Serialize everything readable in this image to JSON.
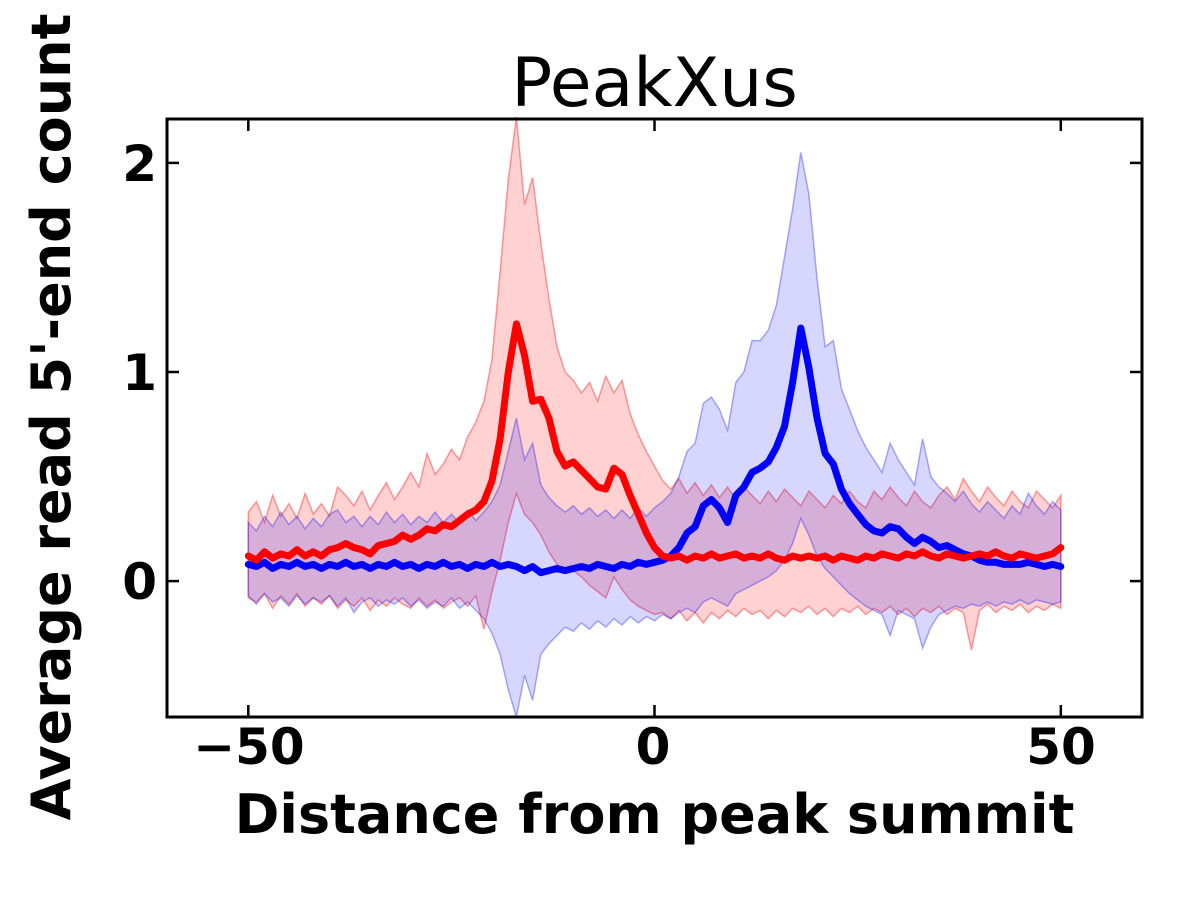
{
  "figure": {
    "background": "#ffffff",
    "spine_color": "#000000"
  },
  "chart_data": {
    "type": "line",
    "title": "PeakXus",
    "xlabel": "Distance from peak summit",
    "ylabel": "Average read 5'-end count",
    "xlim": [
      -60,
      60
    ],
    "ylim": [
      -0.65,
      2.21
    ],
    "grid": false,
    "legend": "none",
    "xticks": [
      -50,
      0,
      50
    ],
    "yticks": [
      0,
      1,
      2
    ],
    "xtick_labels": [
      "−50",
      "0",
      "50"
    ],
    "ytick_labels": [
      "0",
      "1",
      "2"
    ],
    "x": [
      -50,
      -49,
      -48,
      -47,
      -46,
      -45,
      -44,
      -43,
      -42,
      -41,
      -40,
      -39,
      -38,
      -37,
      -36,
      -35,
      -34,
      -33,
      -32,
      -31,
      -30,
      -29,
      -28,
      -27,
      -26,
      -25,
      -24,
      -23,
      -22,
      -21,
      -20,
      -19,
      -18,
      -17,
      -16,
      -15,
      -14,
      -13,
      -12,
      -11,
      -10,
      -9,
      -8,
      -7,
      -6,
      -5,
      -4,
      -3,
      -2,
      -1,
      0,
      1,
      2,
      3,
      4,
      5,
      6,
      7,
      8,
      9,
      10,
      11,
      12,
      13,
      14,
      15,
      16,
      17,
      18,
      19,
      20,
      21,
      22,
      23,
      24,
      25,
      26,
      27,
      28,
      29,
      30,
      31,
      32,
      33,
      34,
      35,
      36,
      37,
      38,
      39,
      40,
      41,
      42,
      43,
      44,
      45,
      46,
      47,
      48,
      49,
      50
    ],
    "series": [
      {
        "name": "red-series",
        "color": "#ff0000",
        "band_fill_alpha": 0.18,
        "band_edge_alpha": 0.38,
        "values": [
          0.12,
          0.1,
          0.14,
          0.11,
          0.13,
          0.12,
          0.15,
          0.12,
          0.14,
          0.12,
          0.15,
          0.16,
          0.18,
          0.16,
          0.15,
          0.13,
          0.17,
          0.18,
          0.19,
          0.22,
          0.2,
          0.22,
          0.25,
          0.24,
          0.27,
          0.26,
          0.29,
          0.32,
          0.34,
          0.38,
          0.48,
          0.68,
          1.0,
          1.23,
          1.08,
          0.86,
          0.87,
          0.78,
          0.62,
          0.55,
          0.57,
          0.53,
          0.49,
          0.45,
          0.44,
          0.54,
          0.51,
          0.41,
          0.32,
          0.23,
          0.16,
          0.12,
          0.11,
          0.12,
          0.1,
          0.12,
          0.11,
          0.13,
          0.11,
          0.12,
          0.13,
          0.11,
          0.12,
          0.11,
          0.13,
          0.11,
          0.1,
          0.12,
          0.11,
          0.12,
          0.11,
          0.12,
          0.1,
          0.12,
          0.11,
          0.1,
          0.12,
          0.11,
          0.13,
          0.12,
          0.11,
          0.13,
          0.12,
          0.14,
          0.12,
          0.11,
          0.13,
          0.12,
          0.11,
          0.12,
          0.13,
          0.12,
          0.14,
          0.12,
          0.11,
          0.13,
          0.12,
          0.11,
          0.12,
          0.13,
          0.16
        ],
        "band_upper": [
          0.33,
          0.38,
          0.28,
          0.41,
          0.31,
          0.37,
          0.3,
          0.42,
          0.32,
          0.37,
          0.31,
          0.45,
          0.41,
          0.36,
          0.43,
          0.34,
          0.41,
          0.47,
          0.39,
          0.45,
          0.52,
          0.45,
          0.61,
          0.51,
          0.56,
          0.63,
          0.58,
          0.69,
          0.76,
          0.86,
          1.06,
          1.48,
          1.92,
          2.22,
          1.8,
          1.93,
          1.62,
          1.35,
          1.12,
          1.0,
          0.96,
          0.9,
          0.95,
          0.86,
          0.98,
          0.9,
          0.96,
          0.8,
          0.7,
          0.62,
          0.55,
          0.48,
          0.44,
          0.49,
          0.42,
          0.47,
          0.41,
          0.46,
          0.4,
          0.45,
          0.39,
          0.45,
          0.41,
          0.37,
          0.43,
          0.38,
          0.44,
          0.4,
          0.36,
          0.43,
          0.39,
          0.35,
          0.41,
          0.37,
          0.43,
          0.38,
          0.35,
          0.43,
          0.39,
          0.45,
          0.4,
          0.36,
          0.43,
          0.38,
          0.35,
          0.41,
          0.45,
          0.39,
          0.49,
          0.43,
          0.38,
          0.45,
          0.4,
          0.36,
          0.43,
          0.38,
          0.35,
          0.43,
          0.39,
          0.35,
          0.41
        ],
        "band_lower": [
          -0.08,
          -0.1,
          -0.06,
          -0.13,
          -0.07,
          -0.11,
          -0.06,
          -0.12,
          -0.08,
          -0.11,
          -0.07,
          -0.13,
          -0.09,
          -0.12,
          -0.08,
          -0.14,
          -0.09,
          -0.12,
          -0.08,
          -0.11,
          -0.13,
          -0.08,
          -0.12,
          -0.09,
          -0.13,
          -0.1,
          -0.08,
          -0.12,
          -0.07,
          -0.23,
          -0.05,
          0.1,
          0.28,
          0.42,
          0.32,
          0.28,
          0.22,
          0.14,
          0.08,
          0.04,
          0.05,
          0.02,
          -0.02,
          -0.05,
          -0.08,
          0.02,
          -0.04,
          -0.09,
          -0.12,
          -0.14,
          -0.16,
          -0.15,
          -0.18,
          -0.14,
          -0.19,
          -0.15,
          -0.2,
          -0.15,
          -0.18,
          -0.14,
          -0.17,
          -0.13,
          -0.16,
          -0.14,
          -0.18,
          -0.14,
          -0.17,
          -0.13,
          -0.15,
          -0.12,
          -0.16,
          -0.13,
          -0.17,
          -0.13,
          -0.15,
          -0.12,
          -0.16,
          -0.13,
          -0.15,
          -0.12,
          -0.16,
          -0.13,
          -0.17,
          -0.13,
          -0.15,
          -0.12,
          -0.16,
          -0.13,
          -0.15,
          -0.33,
          -0.14,
          -0.11,
          -0.15,
          -0.12,
          -0.14,
          -0.11,
          -0.15,
          -0.12,
          -0.14,
          -0.11,
          -0.13
        ]
      },
      {
        "name": "blue-series",
        "color": "#0000ff",
        "band_fill_alpha": 0.16,
        "band_edge_alpha": 0.32,
        "values": [
          0.08,
          0.07,
          0.09,
          0.06,
          0.08,
          0.07,
          0.09,
          0.07,
          0.08,
          0.06,
          0.08,
          0.07,
          0.09,
          0.07,
          0.08,
          0.06,
          0.08,
          0.07,
          0.09,
          0.07,
          0.08,
          0.06,
          0.08,
          0.07,
          0.09,
          0.07,
          0.08,
          0.06,
          0.08,
          0.07,
          0.09,
          0.07,
          0.08,
          0.07,
          0.05,
          0.07,
          0.04,
          0.05,
          0.06,
          0.05,
          0.06,
          0.07,
          0.06,
          0.08,
          0.07,
          0.06,
          0.08,
          0.07,
          0.09,
          0.08,
          0.09,
          0.1,
          0.12,
          0.16,
          0.23,
          0.26,
          0.36,
          0.39,
          0.35,
          0.28,
          0.41,
          0.45,
          0.52,
          0.54,
          0.57,
          0.64,
          0.74,
          0.95,
          1.21,
          1.02,
          0.78,
          0.61,
          0.56,
          0.44,
          0.37,
          0.32,
          0.27,
          0.24,
          0.23,
          0.26,
          0.25,
          0.21,
          0.18,
          0.21,
          0.19,
          0.16,
          0.17,
          0.15,
          0.13,
          0.12,
          0.1,
          0.09,
          0.09,
          0.08,
          0.08,
          0.08,
          0.09,
          0.08,
          0.07,
          0.08,
          0.07
        ],
        "band_upper": [
          0.28,
          0.24,
          0.31,
          0.26,
          0.33,
          0.27,
          0.31,
          0.25,
          0.3,
          0.26,
          0.32,
          0.34,
          0.28,
          0.31,
          0.26,
          0.31,
          0.27,
          0.33,
          0.28,
          0.32,
          0.27,
          0.31,
          0.28,
          0.33,
          0.28,
          0.32,
          0.28,
          0.34,
          0.29,
          0.33,
          0.38,
          0.46,
          0.62,
          0.78,
          0.58,
          0.66,
          0.46,
          0.4,
          0.36,
          0.33,
          0.36,
          0.32,
          0.35,
          0.31,
          0.34,
          0.3,
          0.34,
          0.3,
          0.35,
          0.31,
          0.35,
          0.38,
          0.42,
          0.5,
          0.62,
          0.66,
          0.85,
          0.88,
          0.82,
          0.72,
          0.95,
          1.0,
          1.15,
          1.15,
          1.2,
          1.32,
          1.55,
          1.78,
          2.05,
          1.85,
          1.45,
          1.12,
          1.15,
          0.92,
          0.82,
          0.72,
          0.64,
          0.58,
          0.52,
          0.66,
          0.58,
          0.52,
          0.46,
          0.68,
          0.5,
          0.45,
          0.42,
          0.38,
          0.43,
          0.37,
          0.33,
          0.38,
          0.34,
          0.3,
          0.36,
          0.32,
          0.42,
          0.36,
          0.32,
          0.38,
          0.34
        ],
        "band_lower": [
          -0.07,
          -0.11,
          -0.06,
          -0.1,
          -0.08,
          -0.12,
          -0.07,
          -0.11,
          -0.08,
          -0.1,
          -0.07,
          -0.12,
          -0.08,
          -0.15,
          -0.1,
          -0.08,
          -0.12,
          -0.09,
          -0.11,
          -0.08,
          -0.12,
          -0.09,
          -0.13,
          -0.1,
          -0.12,
          -0.08,
          -0.13,
          -0.1,
          -0.14,
          -0.18,
          -0.25,
          -0.35,
          -0.52,
          -0.65,
          -0.45,
          -0.57,
          -0.35,
          -0.3,
          -0.26,
          -0.22,
          -0.24,
          -0.2,
          -0.23,
          -0.19,
          -0.22,
          -0.18,
          -0.21,
          -0.17,
          -0.2,
          -0.17,
          -0.19,
          -0.16,
          -0.18,
          -0.15,
          -0.13,
          -0.15,
          -0.1,
          -0.08,
          -0.1,
          -0.12,
          -0.06,
          -0.04,
          -0.02,
          0.0,
          0.02,
          0.05,
          0.1,
          0.18,
          0.3,
          0.22,
          0.12,
          0.06,
          0.02,
          -0.02,
          -0.06,
          -0.09,
          -0.12,
          -0.14,
          -0.16,
          -0.26,
          -0.14,
          -0.16,
          -0.18,
          -0.32,
          -0.22,
          -0.16,
          -0.14,
          -0.12,
          -0.13,
          -0.11,
          -0.12,
          -0.1,
          -0.12,
          -0.1,
          -0.11,
          -0.09,
          -0.11,
          -0.09,
          -0.1,
          -0.11,
          -0.1
        ]
      }
    ]
  }
}
